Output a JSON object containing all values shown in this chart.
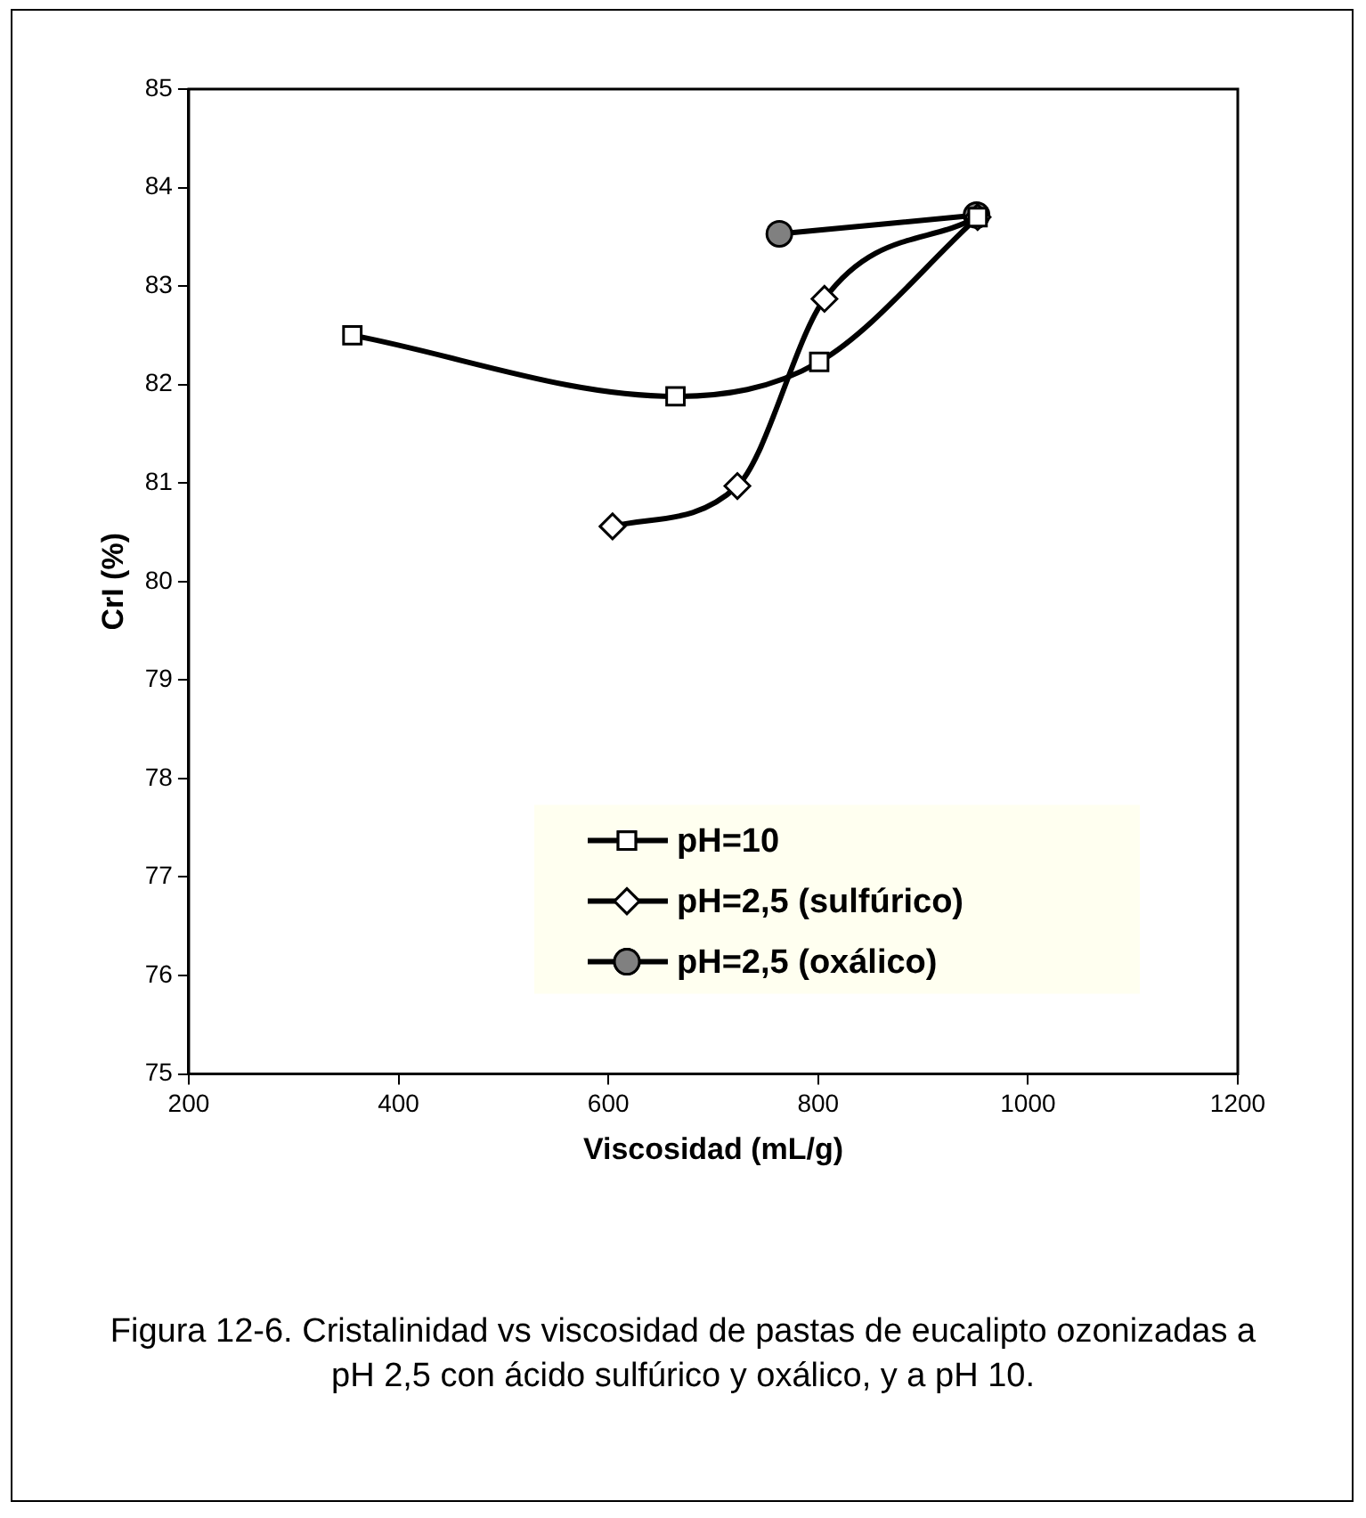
{
  "chart_data": {
    "type": "line",
    "xlabel": "Viscosidad (mL/g)",
    "ylabel": "CrI (%)",
    "xlim": [
      200,
      1200
    ],
    "xticks": [
      200,
      400,
      600,
      800,
      1000,
      1200
    ],
    "ylim": [
      75,
      85
    ],
    "yticks": [
      75,
      76,
      77,
      78,
      79,
      80,
      81,
      82,
      83,
      84,
      85
    ],
    "grid": false,
    "legend": "bottom right",
    "line_style": "solid",
    "series": [
      {
        "name": "pH=10",
        "color": "#000000",
        "marker": "square",
        "x": [
          356,
          664,
          801,
          952
        ],
        "values": [
          82.5,
          81.88,
          82.23,
          83.7
        ]
      },
      {
        "name": "pH=2,5 (sulfúrico)",
        "color": "#000000",
        "marker": "diamond",
        "x": [
          604,
          723,
          806,
          952
        ],
        "values": [
          80.56,
          80.97,
          82.87,
          83.7
        ]
      },
      {
        "name": "pH=2,5 (oxálico)",
        "color": "#000000",
        "marker": "circle",
        "x": [
          763,
          951
        ],
        "values": [
          83.53,
          83.72
        ]
      }
    ],
    "annotations": [
      "Figura 12-6. Cristalinidad vs viscosidad de pastas de eucalipto ozonizadas a pH 2,5 con ácido sulfúrico y oxálico, y a pH 10."
    ]
  }
}
